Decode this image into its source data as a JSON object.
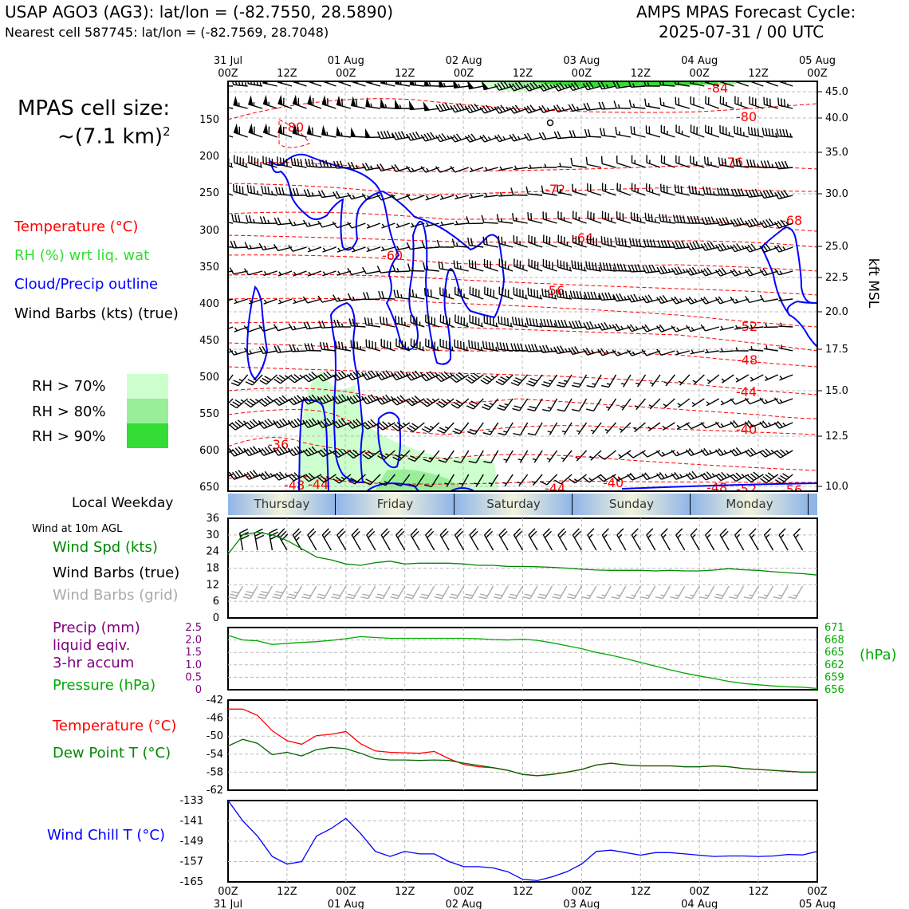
{
  "header": {
    "title_left": "USAP AGO3 (AG3): lat/lon = (-82.7550, 28.5890)",
    "subtitle_left": "Nearest cell 587745: lat/lon = (-82.7569, 28.7048)",
    "title_right_1": "AMPS MPAS Forecast Cycle:",
    "title_right_2": "2025-07-31 / 00 UTC"
  },
  "sidebar": {
    "cell_size_1": "MPAS cell size:",
    "cell_size_2": "~(7.1 km)",
    "cell_size_sup": "2",
    "legend_temperature": "Temperature (°C)",
    "legend_rh": "RH (%) wrt liq. wat",
    "legend_cloud": "Cloud/Precip outline",
    "legend_wind": "Wind Barbs (kts) (true)",
    "rh_levels": [
      "RH > 70%",
      "RH > 80%",
      "RH > 90%"
    ],
    "local_weekday": "Local Weekday",
    "wind_10m": "Wind at 10m AGL",
    "wind_spd": "Wind Spd (kts)",
    "wind_barbs_true": "Wind Barbs (true)",
    "wind_barbs_grid": "Wind Barbs (grid)",
    "precip_1": "Precip (mm)",
    "precip_2": "liquid eqiv.",
    "precip_3": "3-hr accum",
    "pressure": "Pressure (hPa)",
    "temp2": "Temperature (°C)",
    "dew": "Dew Point T (°C)",
    "windchill": "Wind Chill T (°C)"
  },
  "colors": {
    "temperature": "#ff0000",
    "rh_label": "#33dd33",
    "cloud": "#0000ff",
    "rh70": "#ccffcc",
    "rh80": "#99ee99",
    "rh90": "#33dd33",
    "wind_speed": "#008800",
    "grid_barbs": "#aaaaaa",
    "precip": "#800080",
    "pressure": "#00aa00",
    "dewpoint": "#008800",
    "windchill": "#0000ff"
  },
  "time_axis": {
    "top_ticks": [
      "31 Jul\n00Z",
      "12Z",
      "01 Aug\n00Z",
      "12Z",
      "02 Aug\n00Z",
      "12Z",
      "03 Aug\n00Z",
      "12Z",
      "04 Aug\n00Z",
      "12Z",
      "05 Aug\n00Z"
    ],
    "bottom_ticks": [
      "00Z\n31 Jul",
      "12Z",
      "00Z\n01 Aug",
      "12Z",
      "00Z\n02 Aug",
      "12Z",
      "00Z\n03 Aug",
      "12Z",
      "00Z\n04 Aug",
      "12Z",
      "00Z\n05 Aug"
    ]
  },
  "weekdays": [
    "Thursday",
    "Friday",
    "Saturday",
    "Sunday",
    "Monday"
  ],
  "chart_data": [
    {
      "type": "contour",
      "name": "vertical_profile",
      "y_left_label": "",
      "y_left_ticks": [
        "150",
        "200",
        "250",
        "300",
        "350",
        "400",
        "450",
        "500",
        "550",
        "600",
        "650"
      ],
      "y_right_label": "kft MSL",
      "y_right_ticks": [
        "45.0",
        "40.0",
        "35.0",
        "30.0",
        "25.0",
        "22.5",
        "20.0",
        "17.5",
        "15.0",
        "12.5",
        "10.0"
      ],
      "temperature_contour_labels": [
        "-84",
        "-80",
        "-80",
        "-76",
        "-72",
        "-68",
        "-64",
        "-60",
        "-56",
        "-52",
        "-48",
        "-44",
        "-40",
        "-36",
        "-48",
        "-44",
        "-44",
        "-40",
        "-48",
        "-52",
        "-56"
      ]
    },
    {
      "type": "line",
      "name": "wind_speed",
      "ylim": [
        0,
        36
      ],
      "yticks": [
        "36",
        "30",
        "24",
        "18",
        "12",
        "6",
        "0"
      ],
      "x_hours": [
        0,
        3,
        6,
        9,
        12,
        15,
        18,
        21,
        24,
        27,
        30,
        33,
        36,
        39,
        42,
        45,
        48,
        51,
        54,
        57,
        60,
        63,
        66,
        69,
        72,
        75,
        78,
        81,
        84,
        87,
        90,
        93,
        96,
        99,
        102,
        105,
        108,
        111,
        114,
        117,
        120
      ],
      "series": [
        {
          "name": "Wind Spd (kts)",
          "values": [
            23,
            30,
            31,
            30,
            28,
            25,
            22,
            21,
            19.5,
            19,
            20,
            20.5,
            19.5,
            19.8,
            19.8,
            19.8,
            19.5,
            19.0,
            19.0,
            18.6,
            18.6,
            18.5,
            18.3,
            18.0,
            17.6,
            17.3,
            17.2,
            17.2,
            17.2,
            17.0,
            17.2,
            17.0,
            17.0,
            17.3,
            17.8,
            17.4,
            17.2,
            16.7,
            16.3,
            16.0,
            15.5
          ]
        }
      ]
    },
    {
      "type": "line",
      "name": "precip_pressure",
      "ylim_left": [
        0,
        2.5
      ],
      "yticks_left": [
        "2.5",
        "2.0",
        "1.5",
        "1.0",
        "0.5",
        "0"
      ],
      "ylim_right": [
        656,
        671
      ],
      "yticks_right": [
        "671",
        "668",
        "665",
        "662",
        "659",
        "656"
      ],
      "y_right_label": "(hPa)",
      "x_hours": [
        0,
        3,
        6,
        9,
        12,
        15,
        18,
        21,
        24,
        27,
        30,
        33,
        36,
        39,
        42,
        45,
        48,
        51,
        54,
        57,
        60,
        63,
        66,
        69,
        72,
        75,
        78,
        81,
        84,
        87,
        90,
        93,
        96,
        99,
        102,
        105,
        108,
        111,
        114,
        117,
        120
      ],
      "series": [
        {
          "name": "Pressure (hPa)",
          "values": [
            669.1,
            668.0,
            667.8,
            666.9,
            667.2,
            667.4,
            667.6,
            667.9,
            668.3,
            668.8,
            668.6,
            668.4,
            668.4,
            668.4,
            668.4,
            668.4,
            668.4,
            668.3,
            668.1,
            668.0,
            668.2,
            667.9,
            667.3,
            666.6,
            665.9,
            665.0,
            664.3,
            663.5,
            662.6,
            661.7,
            660.8,
            660.0,
            659.3,
            658.7,
            658.0,
            657.5,
            657.2,
            656.9,
            656.7,
            656.6,
            656.3
          ]
        },
        {
          "name": "Precip (mm)",
          "values": [
            0,
            0,
            0,
            0,
            0,
            0,
            0,
            0,
            0,
            0,
            0,
            0,
            0,
            0,
            0,
            0,
            0,
            0,
            0,
            0,
            0,
            0,
            0,
            0,
            0,
            0,
            0,
            0,
            0,
            0,
            0,
            0,
            0,
            0,
            0,
            0,
            0,
            0,
            0,
            0,
            0
          ]
        }
      ]
    },
    {
      "type": "line",
      "name": "temperature_dewpoint",
      "ylim": [
        -62,
        -42
      ],
      "yticks": [
        "-42",
        "-46",
        "-50",
        "-54",
        "-58",
        "-62"
      ],
      "x_hours": [
        0,
        3,
        6,
        9,
        12,
        15,
        18,
        21,
        24,
        27,
        30,
        33,
        36,
        39,
        42,
        45,
        48,
        51,
        54,
        57,
        60,
        63,
        66,
        69,
        72,
        75,
        78,
        81,
        84,
        87,
        90,
        93,
        96,
        99,
        102,
        105,
        108,
        111,
        114,
        117,
        120
      ],
      "series": [
        {
          "name": "Temperature (°C)",
          "values": [
            -44.0,
            -44.0,
            -45.4,
            -48.8,
            -51.0,
            -51.8,
            -49.9,
            -49.6,
            -49.0,
            -51.7,
            -53.3,
            -53.6,
            -53.7,
            -53.8,
            -53.4,
            -55.0,
            -56.3,
            -56.8,
            -57.0,
            -57.6,
            -58.5,
            -58.8,
            -58.5,
            -58.0,
            -57.4,
            -56.4,
            -56.0,
            -56.4,
            -56.6,
            -56.6,
            -56.6,
            -56.8,
            -56.8,
            -56.6,
            -56.8,
            -57.2,
            -57.4,
            -57.6,
            -57.8,
            -58.0,
            -58.0
          ]
        },
        {
          "name": "Dew Point T (°C)",
          "values": [
            -52.2,
            -50.7,
            -51.6,
            -54.1,
            -53.6,
            -54.4,
            -53.0,
            -52.5,
            -52.8,
            -53.8,
            -55.0,
            -55.3,
            -55.3,
            -55.4,
            -55.3,
            -55.4,
            -56.0,
            -56.5,
            -57.0,
            -57.6,
            -58.5,
            -58.8,
            -58.5,
            -58.0,
            -57.4,
            -56.4,
            -56.0,
            -56.4,
            -56.6,
            -56.6,
            -56.6,
            -56.8,
            -56.8,
            -56.6,
            -56.8,
            -57.2,
            -57.4,
            -57.6,
            -57.8,
            -58.0,
            -58.0
          ]
        }
      ]
    },
    {
      "type": "line",
      "name": "wind_chill",
      "ylim": [
        -165,
        -133
      ],
      "yticks": [
        "-133",
        "-141",
        "-149",
        "-157",
        "-165"
      ],
      "x_hours": [
        0,
        3,
        6,
        9,
        12,
        15,
        18,
        21,
        24,
        27,
        30,
        33,
        36,
        39,
        42,
        45,
        48,
        51,
        54,
        57,
        60,
        63,
        66,
        69,
        72,
        75,
        78,
        81,
        84,
        87,
        90,
        93,
        96,
        99,
        102,
        105,
        108,
        111,
        114,
        117,
        120
      ],
      "series": [
        {
          "name": "Wind Chill T (°C)",
          "values": [
            -133,
            -141,
            -147,
            -155,
            -158,
            -157,
            -147,
            -144,
            -140,
            -146,
            -153,
            -155,
            -153,
            -154,
            -154,
            -157,
            -159,
            -159,
            -159.5,
            -161,
            -164,
            -164.5,
            -163,
            -161,
            -158,
            -153,
            -152.5,
            -153.5,
            -154.5,
            -153.5,
            -153.5,
            -154,
            -154.5,
            -155,
            -154.8,
            -154.8,
            -155,
            -154.8,
            -154.2,
            -154.4,
            -153
          ]
        }
      ]
    }
  ]
}
